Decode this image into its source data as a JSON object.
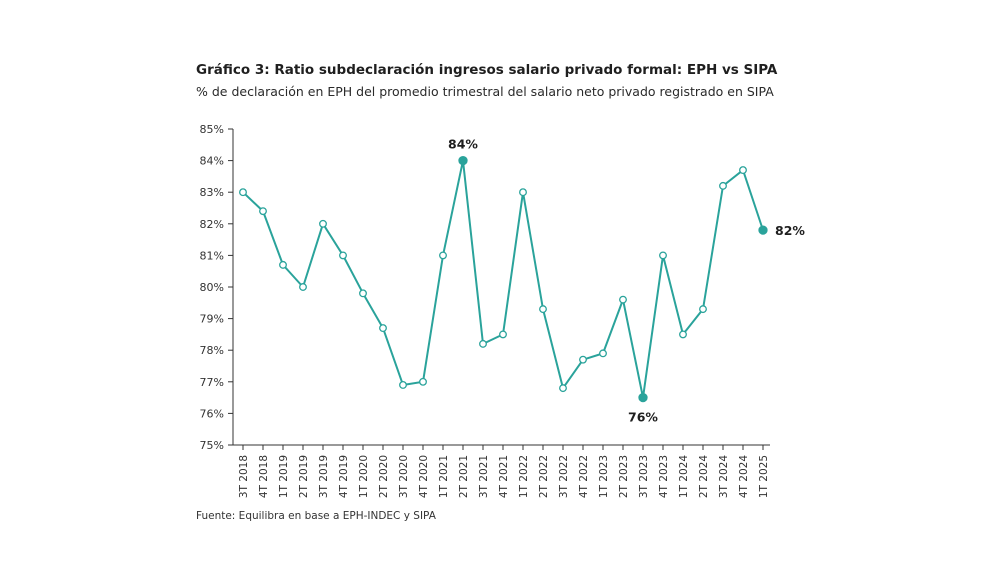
{
  "title": "Gráfico 3: Ratio subdeclaración ingresos salario privado formal: EPH vs SIPA",
  "subtitle": "% de declaración en EPH del promedio trimestral del salario neto privado registrado en SIPA",
  "source": "Fuente: Equilibra en base a EPH-INDEC y SIPA",
  "colors": {
    "line": "#2aa39b",
    "axis": "#333333"
  },
  "chart_data": {
    "type": "line",
    "title": "Gráfico 3: Ratio subdeclaración ingresos salario privado formal: EPH vs SIPA",
    "subtitle": "% de declaración en EPH del promedio trimestral del salario neto privado registrado en SIPA",
    "xlabel": "",
    "ylabel": "",
    "ylim": [
      75,
      85
    ],
    "ytick_labels": [
      "75%",
      "76%",
      "77%",
      "78%",
      "79%",
      "80%",
      "81%",
      "82%",
      "83%",
      "84%",
      "85%"
    ],
    "yticks": [
      75,
      76,
      77,
      78,
      79,
      80,
      81,
      82,
      83,
      84,
      85
    ],
    "grid": false,
    "categories": [
      "3T 2018",
      "4T 2018",
      "1T 2019",
      "2T 2019",
      "3T 2019",
      "4T 2019",
      "1T 2020",
      "2T 2020",
      "3T 2020",
      "4T 2020",
      "1T 2021",
      "2T 2021",
      "3T 2021",
      "4T 2021",
      "1T 2022",
      "2T 2022",
      "3T 2022",
      "4T 2022",
      "1T 2023",
      "2T 2023",
      "3T 2023",
      "4T 2023",
      "1T 2024",
      "2T 2024",
      "3T 2024",
      "4T 2024",
      "1T 2025"
    ],
    "series": [
      {
        "values": [
          83.0,
          82.4,
          80.7,
          80.0,
          82.0,
          81.0,
          79.8,
          78.7,
          76.9,
          77.0,
          81.0,
          84.0,
          78.2,
          78.5,
          83.0,
          79.3,
          76.8,
          77.7,
          77.9,
          79.6,
          76.5,
          81.0,
          78.5,
          79.3,
          83.2,
          83.7,
          81.8
        ]
      }
    ],
    "annotations": [
      {
        "index": 11,
        "label": "84%",
        "position": "above"
      },
      {
        "index": 20,
        "label": "76%",
        "position": "below"
      },
      {
        "index": 26,
        "label": "82%",
        "position": "right"
      }
    ]
  }
}
